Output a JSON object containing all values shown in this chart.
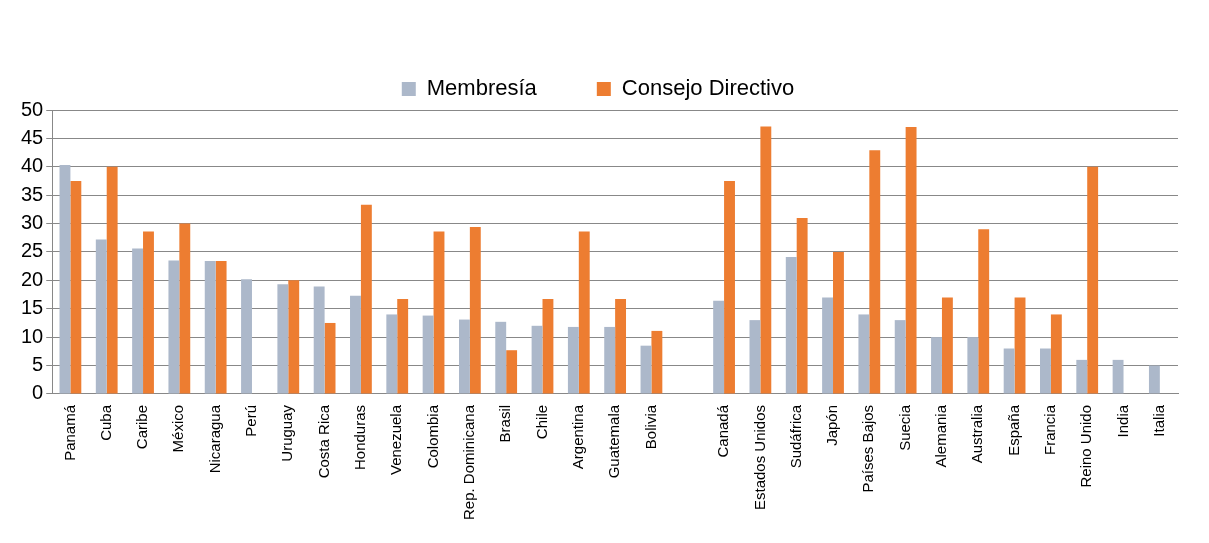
{
  "chart_data": {
    "type": "bar",
    "categories": [
      "Panamá",
      "Cuba",
      "Caribe",
      "México",
      "Nicaragua",
      "Perú",
      "Uruguay",
      "Costa Rica",
      "Honduras",
      "Venezuela",
      "Colombia",
      "Rep. Dominicana",
      "Brasil",
      "Chile",
      "Argentina",
      "Guatemala",
      "Bolivia",
      null,
      "Canadá",
      "Estados Unidos",
      "Sudáfrica",
      "Japón",
      "Países Bajos",
      "Suecia",
      "Alemania",
      "Australia",
      "España",
      "Francia",
      "Reino Unido",
      "India",
      "Italia"
    ],
    "series": [
      {
        "name": "Membresía",
        "color": "#acb8ca",
        "values": [
          40.3,
          27.2,
          25.6,
          23.5,
          23.4,
          20.2,
          19.3,
          18.9,
          17.3,
          14,
          13.8,
          13.1,
          12.7,
          12,
          11.8,
          11.8,
          8.5,
          null,
          16.4,
          13,
          24.1,
          17,
          14,
          13,
          10,
          10,
          8,
          8,
          6,
          6,
          5
        ]
      },
      {
        "name": "Consejo Directivo",
        "color": "#ed7d31",
        "values": [
          37.5,
          40,
          28.6,
          30,
          23.4,
          null,
          20,
          12.5,
          33.3,
          16.7,
          28.6,
          29.4,
          7.7,
          16.7,
          28.6,
          16.7,
          11.1,
          null,
          37.5,
          47.1,
          31,
          25,
          42.9,
          47,
          17,
          29,
          17,
          14,
          40,
          null,
          null
        ]
      }
    ],
    "ylim": [
      0,
      50
    ],
    "yticks": [
      0,
      5,
      10,
      15,
      20,
      25,
      30,
      35,
      40,
      45,
      50
    ],
    "grid": "y",
    "legend": "top"
  }
}
